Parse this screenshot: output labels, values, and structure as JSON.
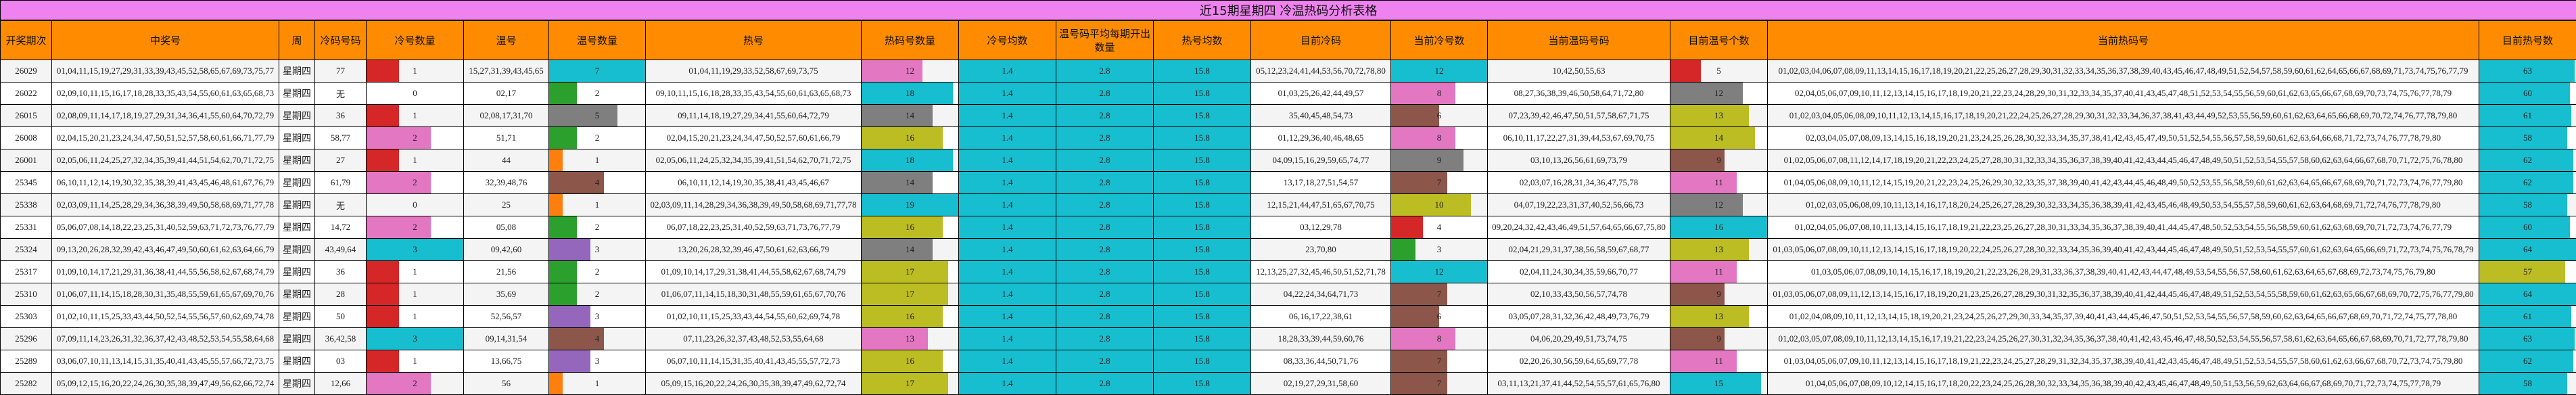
{
  "title": "近15期星期四 冷温热码分析表格",
  "headers": [
    "开奖期次",
    "中奖号",
    "周",
    "冷码号码",
    "冷号数量",
    "温号",
    "温号数量",
    "热号",
    "热码号数量",
    "冷号均数",
    "温号码平均每期开出数量",
    "热号均数",
    "目前冷码",
    "当前冷号数",
    "当前温码号码",
    "目前温号个数",
    "当前热码号",
    "目前热号数"
  ],
  "colors": {
    "title_bg": "#ee82ee",
    "header_bg": "#ff8c00",
    "avg_bg": "#17becf",
    "cold_count": {
      "1": "#d62728",
      "2": "#e377c2",
      "3": "#17becf"
    },
    "warm_count": {
      "1": "#ff7f0e",
      "2": "#2ca02c",
      "3": "#9467bd",
      "4": "#8c564b",
      "5": "#7f7f7f",
      "7": "#17becf"
    },
    "hot_count": {
      "12": "#e377c2",
      "13": "#e377c2",
      "14": "#7f7f7f",
      "16": "#bcbd22",
      "17": "#bcbd22",
      "18": "#17becf",
      "19": "#17becf"
    },
    "cur_cold_count": {
      "3": "#2ca02c",
      "4": "#d62728",
      "6": "#8c564b",
      "7": "#8c564b",
      "8": "#e377c2",
      "9": "#7f7f7f",
      "10": "#bcbd22",
      "12": "#17becf"
    },
    "cur_warm_count": {
      "5": "#d62728",
      "9": "#8c564b",
      "11": "#e377c2",
      "12": "#7f7f7f",
      "13": "#bcbd22",
      "14": "#bcbd22",
      "15": "#17becf",
      "16": "#17becf"
    },
    "cur_hot_count": {
      "57": "#bcbd22",
      "58": "#17becf",
      "60": "#17becf",
      "61": "#17becf",
      "62": "#17becf",
      "63": "#17becf",
      "64": "#17becf"
    }
  },
  "rows": [
    {
      "period": "26029",
      "numbers": "01,04,11,15,19,27,29,31,33,39,43,45,52,58,65,67,69,73,75,77",
      "weekday": "星期四",
      "cold": "77",
      "cold_count": "1",
      "warm": "15,27,31,39,43,45,65",
      "warm_count": "7",
      "hot": "01,04,11,19,29,33,52,58,67,69,73,75",
      "hot_count": "12",
      "cold_avg": "1.4",
      "warm_avg": "2.8",
      "hot_avg": "15.8",
      "cur_cold": "05,12,23,24,41,44,53,56,70,72,78,80",
      "cur_cold_count": "12",
      "cur_warm": "10,42,50,55,63",
      "cur_warm_count": "5",
      "cur_hot": "01,02,03,04,06,07,08,09,11,13,14,15,16,17,18,19,20,21,22,25,26,27,28,29,30,31,32,33,34,35,36,37,38,39,40,43,45,46,47,48,49,51,52,54,57,58,59,60,61,62,64,65,66,67,68,69,71,73,74,75,76,77,79",
      "cur_hot_count": "63"
    },
    {
      "period": "26022",
      "numbers": "02,09,10,11,15,16,17,18,28,33,35,43,54,55,60,61,63,65,68,73",
      "weekday": "星期四",
      "cold": "无",
      "cold_count": "0",
      "warm": "02,17",
      "warm_count": "2",
      "hot": "09,10,11,15,16,18,28,33,35,43,54,55,60,61,63,65,68,73",
      "hot_count": "18",
      "cold_avg": "1.4",
      "warm_avg": "2.8",
      "hot_avg": "15.8",
      "cur_cold": "01,03,25,26,42,44,49,57",
      "cur_cold_count": "8",
      "cur_warm": "08,27,36,38,39,46,50,58,64,71,72,80",
      "cur_warm_count": "12",
      "cur_hot": "02,04,05,06,07,09,10,11,12,13,14,15,16,17,18,19,20,21,22,23,24,28,29,30,31,32,33,34,35,37,40,41,43,45,47,48,51,52,53,54,55,56,59,60,61,62,63,65,66,67,68,69,70,73,74,75,76,77,78,79",
      "cur_hot_count": "60"
    },
    {
      "period": "26015",
      "numbers": "02,08,09,11,14,17,18,19,27,29,31,34,36,41,55,60,64,70,72,79",
      "weekday": "星期四",
      "cold": "36",
      "cold_count": "1",
      "warm": "02,08,17,31,70",
      "warm_count": "5",
      "hot": "09,11,14,18,19,27,29,34,41,55,60,64,72,79",
      "hot_count": "14",
      "cold_avg": "1.4",
      "warm_avg": "2.8",
      "hot_avg": "15.8",
      "cur_cold": "35,40,45,48,54,73",
      "cur_cold_count": "6",
      "cur_warm": "07,23,39,42,46,47,50,51,57,58,67,71,75",
      "cur_warm_count": "13",
      "cur_hot": "01,02,03,04,05,06,08,09,10,11,12,13,14,15,16,17,18,19,20,21,22,24,25,26,27,28,29,30,31,32,33,34,36,37,38,41,43,44,49,52,53,55,56,59,60,61,62,63,64,65,66,68,69,70,72,74,76,77,78,79,80",
      "cur_hot_count": "61"
    },
    {
      "period": "26008",
      "numbers": "02,04,15,20,21,23,24,34,47,50,51,52,57,58,60,61,66,71,77,79",
      "weekday": "星期四",
      "cold": "58,77",
      "cold_count": "2",
      "warm": "51,71",
      "warm_count": "2",
      "hot": "02,04,15,20,21,23,24,34,47,50,52,57,60,61,66,79",
      "hot_count": "16",
      "cold_avg": "1.4",
      "warm_avg": "2.8",
      "hot_avg": "15.8",
      "cur_cold": "01,12,29,36,40,46,48,65",
      "cur_cold_count": "8",
      "cur_warm": "06,10,11,17,22,27,31,39,44,53,67,69,70,75",
      "cur_warm_count": "14",
      "cur_hot": "02,03,04,05,07,08,09,13,14,15,16,18,19,20,21,23,24,25,26,28,30,32,33,34,35,37,38,41,42,43,45,47,49,50,51,52,54,55,56,57,58,59,60,61,62,63,64,66,68,71,72,73,74,76,77,78,79,80",
      "cur_hot_count": "58"
    },
    {
      "period": "26001",
      "numbers": "02,05,06,11,24,25,27,32,34,35,39,41,44,51,54,62,70,71,72,75",
      "weekday": "星期四",
      "cold": "27",
      "cold_count": "1",
      "warm": "44",
      "warm_count": "1",
      "hot": "02,05,06,11,24,25,32,34,35,39,41,51,54,62,70,71,72,75",
      "hot_count": "18",
      "cold_avg": "1.4",
      "warm_avg": "2.8",
      "hot_avg": "15.8",
      "cur_cold": "04,09,15,16,29,59,65,74,77",
      "cur_cold_count": "9",
      "cur_warm": "03,10,13,26,56,61,69,73,79",
      "cur_warm_count": "9",
      "cur_hot": "01,02,05,06,07,08,11,12,14,17,18,19,20,21,22,23,24,25,27,28,30,31,32,33,34,35,36,37,38,39,40,41,42,43,44,45,46,47,48,49,50,51,52,53,54,55,57,58,60,62,63,64,66,67,68,70,71,72,75,76,78,80",
      "cur_hot_count": "62"
    },
    {
      "period": "25345",
      "numbers": "06,10,11,12,14,19,30,32,35,38,39,41,43,45,46,48,61,67,76,79",
      "weekday": "星期四",
      "cold": "61,79",
      "cold_count": "2",
      "warm": "32,39,48,76",
      "warm_count": "4",
      "hot": "06,10,11,12,14,19,30,35,38,41,43,45,46,67",
      "hot_count": "14",
      "cold_avg": "1.4",
      "warm_avg": "2.8",
      "hot_avg": "15.8",
      "cur_cold": "13,17,18,27,51,54,57",
      "cur_cold_count": "7",
      "cur_warm": "02,03,07,16,28,31,34,36,47,75,78",
      "cur_warm_count": "11",
      "cur_hot": "01,04,05,06,08,09,10,11,12,14,15,19,20,21,22,23,24,25,26,29,30,32,33,35,37,38,39,40,41,42,43,44,45,46,48,49,50,52,53,55,56,58,59,60,61,62,63,64,65,66,67,68,69,70,71,72,73,74,76,77,79,80",
      "cur_hot_count": "62"
    },
    {
      "period": "25338",
      "numbers": "02,03,09,11,14,25,28,29,34,36,38,39,49,50,58,68,69,71,77,78",
      "weekday": "星期四",
      "cold": "无",
      "cold_count": "0",
      "warm": "25",
      "warm_count": "1",
      "hot": "02,03,09,11,14,28,29,34,36,38,39,49,50,58,68,69,71,77,78",
      "hot_count": "19",
      "cold_avg": "1.4",
      "warm_avg": "2.8",
      "hot_avg": "15.8",
      "cur_cold": "12,15,21,44,47,51,65,67,70,75",
      "cur_cold_count": "10",
      "cur_warm": "04,07,19,22,23,31,37,40,52,56,66,73",
      "cur_warm_count": "12",
      "cur_hot": "01,02,03,05,06,08,09,10,11,13,14,16,17,18,20,24,25,26,27,28,29,30,32,33,34,35,36,38,39,41,42,43,45,46,48,49,50,53,54,55,57,58,59,60,61,62,63,64,68,69,71,72,74,76,77,78,79,80",
      "cur_hot_count": "58"
    },
    {
      "period": "25331",
      "numbers": "05,06,07,08,14,18,22,23,25,31,40,52,59,63,71,72,73,76,77,79",
      "weekday": "星期四",
      "cold": "14,72",
      "cold_count": "2",
      "warm": "05,08",
      "warm_count": "2",
      "hot": "06,07,18,22,23,25,31,40,52,59,63,71,73,76,77,79",
      "hot_count": "16",
      "cold_avg": "1.4",
      "warm_avg": "2.8",
      "hot_avg": "15.8",
      "cur_cold": "03,12,29,78",
      "cur_cold_count": "4",
      "cur_warm": "09,20,24,32,42,43,46,49,51,57,64,65,66,67,75,80",
      "cur_warm_count": "16",
      "cur_hot": "01,02,04,05,06,07,08,10,11,13,14,15,16,17,18,19,21,22,23,25,26,27,28,30,31,33,34,35,36,37,38,39,40,41,44,45,47,48,50,52,53,54,55,56,58,59,60,61,62,63,68,69,70,71,72,73,74,76,77,79",
      "cur_hot_count": "60"
    },
    {
      "period": "25324",
      "numbers": "09,13,20,26,28,32,39,42,43,46,47,49,50,60,61,62,63,64,66,79",
      "weekday": "星期四",
      "cold": "43,49,64",
      "cold_count": "3",
      "warm": "09,42,60",
      "warm_count": "3",
      "hot": "13,20,26,28,32,39,46,47,50,61,62,63,66,79",
      "hot_count": "14",
      "cold_avg": "1.4",
      "warm_avg": "2.8",
      "hot_avg": "15.8",
      "cur_cold": "23,70,80",
      "cur_cold_count": "3",
      "cur_warm": "02,04,21,29,31,37,38,56,58,59,67,68,77",
      "cur_warm_count": "13",
      "cur_hot": "01,03,05,06,07,08,09,10,11,12,13,14,15,16,17,18,19,20,22,24,25,26,27,28,30,32,33,34,35,36,39,40,41,42,43,44,45,46,47,48,49,50,51,52,53,54,55,57,60,61,62,63,64,65,66,69,71,72,73,74,75,76,78,79",
      "cur_hot_count": "64"
    },
    {
      "period": "25317",
      "numbers": "01,09,10,14,17,21,29,31,36,38,41,44,55,56,58,62,67,68,74,79",
      "weekday": "星期四",
      "cold": "36",
      "cold_count": "1",
      "warm": "21,56",
      "warm_count": "2",
      "hot": "01,09,10,14,17,29,31,38,41,44,55,58,62,67,68,74,79",
      "hot_count": "17",
      "cold_avg": "1.4",
      "warm_avg": "2.8",
      "hot_avg": "15.8",
      "cur_cold": "12,13,25,27,32,45,46,50,51,52,71,78",
      "cur_cold_count": "12",
      "cur_warm": "02,04,11,24,30,34,35,59,66,70,77",
      "cur_warm_count": "11",
      "cur_hot": "01,03,05,06,07,08,09,10,14,15,16,17,18,19,20,21,22,23,26,28,29,31,33,36,37,38,39,40,41,42,43,44,47,48,49,53,54,55,56,57,58,60,61,62,63,64,65,67,68,69,72,73,74,75,76,79,80",
      "cur_hot_count": "57"
    },
    {
      "period": "25310",
      "numbers": "01,06,07,11,14,15,18,28,30,31,35,48,55,59,61,65,67,69,70,76",
      "weekday": "星期四",
      "cold": "28",
      "cold_count": "1",
      "warm": "35,69",
      "warm_count": "2",
      "hot": "01,06,07,11,14,15,18,30,31,48,55,59,61,65,67,70,76",
      "hot_count": "17",
      "cold_avg": "1.4",
      "warm_avg": "2.8",
      "hot_avg": "15.8",
      "cur_cold": "04,22,24,34,64,71,73",
      "cur_cold_count": "7",
      "cur_warm": "02,10,33,43,50,56,57,74,78",
      "cur_warm_count": "9",
      "cur_hot": "01,03,05,06,07,08,09,11,12,13,14,15,16,17,18,19,20,21,23,25,26,27,28,29,30,31,32,35,36,37,38,39,40,41,42,44,45,46,47,48,49,51,52,53,54,55,58,59,60,61,62,63,65,66,67,68,69,70,72,75,76,77,79,80",
      "cur_hot_count": "64"
    },
    {
      "period": "25303",
      "numbers": "01,02,10,11,15,25,33,43,44,50,52,54,55,56,57,60,62,69,74,78",
      "weekday": "星期四",
      "cold": "50",
      "cold_count": "1",
      "warm": "52,56,57",
      "warm_count": "3",
      "hot": "01,02,10,11,15,25,33,43,44,54,55,60,62,69,74,78",
      "hot_count": "16",
      "cold_avg": "1.4",
      "warm_avg": "2.8",
      "hot_avg": "15.8",
      "cur_cold": "06,16,17,22,38,61",
      "cur_cold_count": "6",
      "cur_warm": "03,05,07,28,31,32,36,42,48,49,73,76,79",
      "cur_warm_count": "13",
      "cur_hot": "01,02,04,08,09,10,11,12,13,14,15,18,19,20,21,23,24,25,26,27,29,30,33,34,35,37,39,40,41,43,44,45,46,47,50,51,52,53,54,55,56,57,58,59,60,62,63,64,65,66,67,68,69,70,71,72,74,75,77,78,80",
      "cur_hot_count": "61"
    },
    {
      "period": "25296",
      "numbers": "07,09,11,14,23,26,31,32,36,37,42,43,48,52,53,54,55,58,64,68",
      "weekday": "星期四",
      "cold": "36,42,58",
      "cold_count": "3",
      "warm": "09,14,31,54",
      "warm_count": "4",
      "hot": "07,11,23,26,32,37,43,48,52,53,55,64,68",
      "hot_count": "13",
      "cold_avg": "1.4",
      "warm_avg": "2.8",
      "hot_avg": "15.8",
      "cur_cold": "18,28,33,39,44,59,60,76",
      "cur_cold_count": "8",
      "cur_warm": "04,06,20,29,49,51,73,74,75",
      "cur_warm_count": "9",
      "cur_hot": "01,02,03,05,07,08,09,10,11,12,13,14,15,16,17,19,21,22,23,24,25,26,27,30,31,32,34,35,36,37,38,40,41,42,43,45,46,47,48,50,52,53,54,55,56,57,58,61,62,63,64,65,66,67,68,69,70,71,72,77,78,79,80",
      "cur_hot_count": "63"
    },
    {
      "period": "25289",
      "numbers": "03,06,07,10,11,13,14,15,31,35,40,41,43,45,55,57,66,72,73,75",
      "weekday": "星期四",
      "cold": "03",
      "cold_count": "1",
      "warm": "13,66,75",
      "warm_count": "3",
      "hot": "06,07,10,11,14,15,31,35,40,41,43,45,55,57,72,73",
      "hot_count": "16",
      "cold_avg": "1.4",
      "warm_avg": "2.8",
      "hot_avg": "15.8",
      "cur_cold": "08,33,36,44,50,71,76",
      "cur_cold_count": "7",
      "cur_warm": "02,20,26,30,56,59,64,65,69,77,78",
      "cur_warm_count": "11",
      "cur_hot": "01,03,04,05,06,07,09,10,11,12,13,14,15,16,17,18,19,21,22,23,24,25,27,28,29,31,32,34,35,37,38,39,40,41,42,43,45,46,47,48,49,51,52,53,54,55,57,58,60,61,62,63,66,67,68,70,72,73,74,75,79,80",
      "cur_hot_count": "62"
    },
    {
      "period": "25282",
      "numbers": "05,09,12,15,16,20,22,24,26,30,35,38,39,47,49,56,62,66,72,74",
      "weekday": "星期四",
      "cold": "12,66",
      "cold_count": "2",
      "warm": "56",
      "warm_count": "1",
      "hot": "05,09,15,16,20,22,24,26,30,35,38,39,47,49,62,72,74",
      "hot_count": "17",
      "cold_avg": "1.4",
      "warm_avg": "2.8",
      "hot_avg": "15.8",
      "cur_cold": "02,19,27,29,31,58,60",
      "cur_cold_count": "7",
      "cur_warm": "03,11,13,21,37,41,44,52,54,55,57,61,65,76,80",
      "cur_warm_count": "15",
      "cur_hot": "01,04,05,06,07,08,09,10,12,14,15,16,17,18,20,22,23,24,25,26,28,30,32,33,34,35,36,38,39,40,42,43,45,46,47,48,49,50,51,53,56,59,62,63,64,66,67,68,69,70,71,72,73,74,75,77,78,79",
      "cur_hot_count": "58"
    }
  ]
}
